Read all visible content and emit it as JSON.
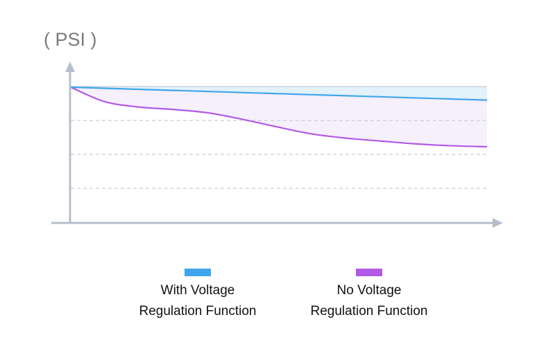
{
  "chart_data": {
    "type": "line",
    "title": "",
    "xlabel": "",
    "ylabel": "( PSI )",
    "xlim": [
      0,
      100
    ],
    "ylim": [
      0,
      100
    ],
    "grid": "horizontal dashed",
    "gridlines_y": [
      25,
      50,
      75,
      100
    ],
    "legend_placement": "bottom",
    "series": [
      {
        "name": "With Voltage Regulation Function",
        "color": "#3ea6ec",
        "fill": "#e3f1fb",
        "x": [
          0,
          100
        ],
        "y": [
          99.5,
          90
        ]
      },
      {
        "name": "No Voltage Regulation Function",
        "color": "#b15ae6",
        "fill": "#f6effc",
        "x": [
          0,
          8,
          16,
          25,
          33,
          41,
          50,
          58,
          66,
          75,
          83,
          91,
          100
        ],
        "y": [
          99.5,
          89,
          85,
          83,
          80.6,
          76,
          70,
          65,
          62,
          59.7,
          57.7,
          56.4,
          55.6
        ]
      }
    ]
  },
  "legend": [
    {
      "line1": "With Voltage",
      "line2": "Regulation Function"
    },
    {
      "line1": "No Voltage",
      "line2": "Regulation Function"
    }
  ]
}
